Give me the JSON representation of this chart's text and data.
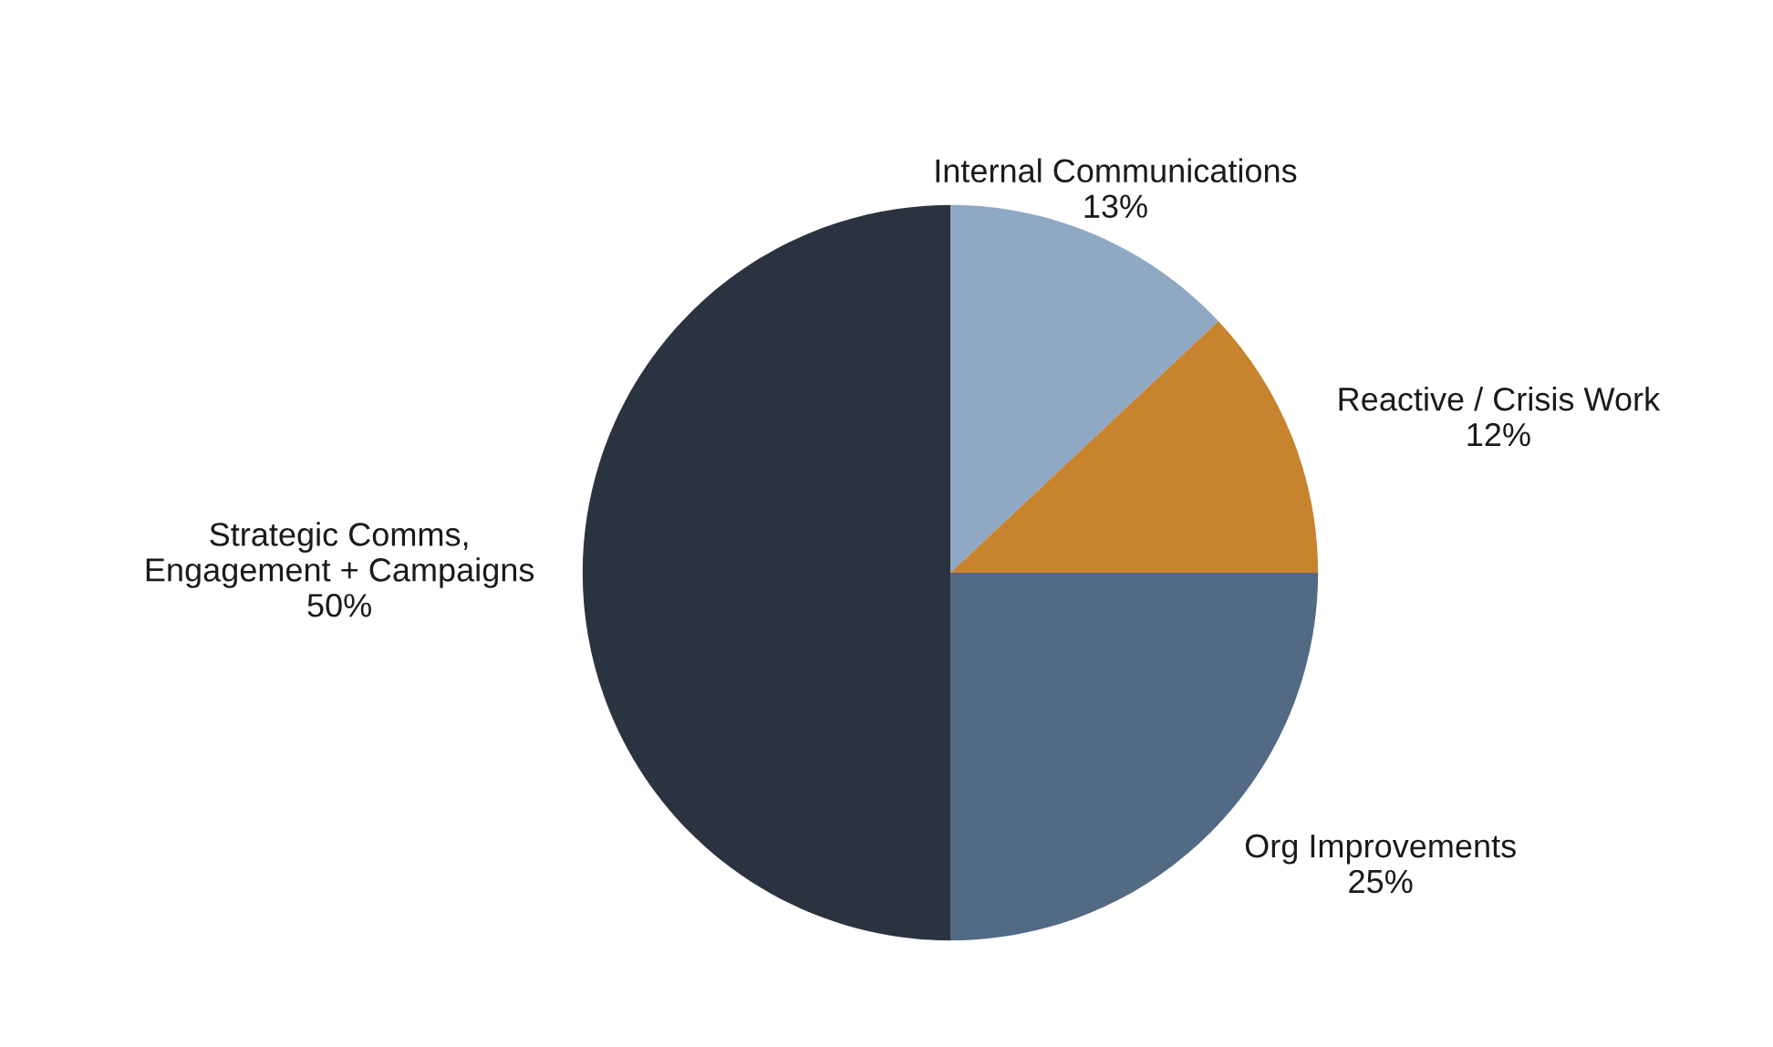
{
  "chart_data": {
    "type": "pie",
    "categories": [
      "Internal Communications",
      "Reactive / Crisis Work",
      "Org Improvements",
      "Strategic Comms,\nEngagement + Campaigns"
    ],
    "values": [
      13,
      12,
      25,
      50
    ],
    "value_labels": [
      "13%",
      "12%",
      "25%",
      "50%"
    ],
    "colors": [
      "#8fa8c3",
      "#c8832e",
      "#536a84",
      "#2c3340"
    ],
    "legend": false
  }
}
